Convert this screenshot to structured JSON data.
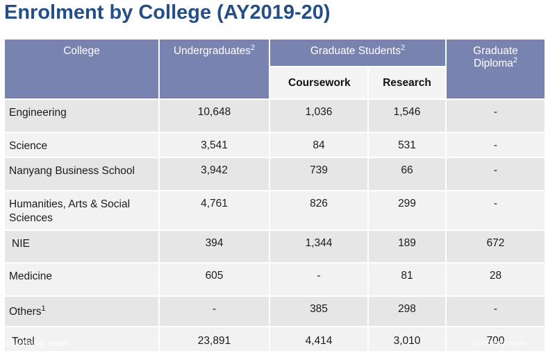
{
  "title": "Enrolment by College (AY2019-20)",
  "headers": {
    "college": "College",
    "undergraduates": "Undergraduates",
    "undergraduates_sup": "2",
    "graduate_students": "Graduate Students",
    "graduate_students_sup": "2",
    "graduate_diploma_line1": "Graduate",
    "graduate_diploma_line2": "Diploma",
    "graduate_diploma_sup": "2",
    "coursework": "Coursework",
    "research": "Research"
  },
  "rows": [
    {
      "college": "Engineering",
      "undergraduates": "10,648",
      "coursework": "1,036",
      "research": "1,546",
      "diploma": "-"
    },
    {
      "college": "Science",
      "undergraduates": "3,541",
      "coursework": "84",
      "research": "531",
      "diploma": "-"
    },
    {
      "college": "Nanyang Business School",
      "undergraduates": "3,942",
      "coursework": "739",
      "research": "66",
      "diploma": "-"
    },
    {
      "college": "Humanities, Arts & Social Sciences",
      "undergraduates": "4,761",
      "coursework": "826",
      "research": "299",
      "diploma": "-"
    },
    {
      "college": "NIE",
      "undergraduates": "394",
      "coursework": "1,344",
      "research": "189",
      "diploma": "672"
    },
    {
      "college": "Medicine",
      "undergraduates": "605",
      "coursework": "-",
      "research": "81",
      "diploma": "28"
    },
    {
      "college": "Others",
      "college_sup": "1",
      "undergraduates": "-",
      "coursework": "385",
      "research": "298",
      "diploma": "-"
    },
    {
      "college": "Total",
      "undergraduates": "23,891",
      "coursework": "4,414",
      "research": "3,010",
      "diploma": "700"
    }
  ],
  "watermarks": {
    "left": "shicheng.news",
    "right": "shicheng.news"
  }
}
